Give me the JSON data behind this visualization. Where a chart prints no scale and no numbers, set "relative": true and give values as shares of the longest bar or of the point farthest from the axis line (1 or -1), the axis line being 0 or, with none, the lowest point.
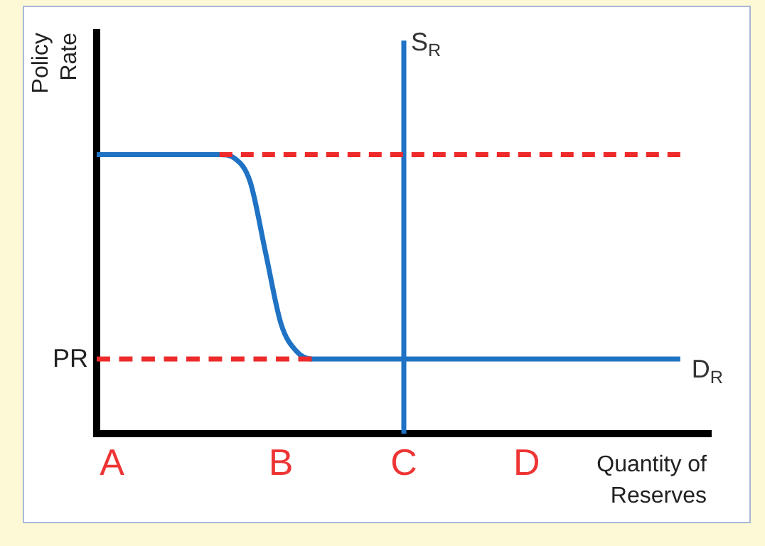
{
  "chart_data": {
    "type": "line",
    "relative": true,
    "xlabel": "Quantity of Reserves",
    "ylabel": "Policy Rate",
    "categories": [
      null,
      "A",
      null,
      null,
      null,
      null,
      null,
      null,
      null,
      null,
      null,
      null,
      "B",
      null,
      null,
      null,
      null,
      null,
      null,
      null,
      "C",
      null,
      null,
      null,
      null,
      null,
      null,
      null,
      "D",
      null,
      null,
      null,
      null,
      null,
      null,
      null,
      null,
      null,
      null,
      null,
      null
    ],
    "tick_labels": "x",
    "legend": false,
    "grid": false,
    "marker": "none",
    "annotations": [
      "PR"
    ],
    "series": [
      {
        "name": "D$_{R}$",
        "color": "#1f72c4",
        "line_style": "solid",
        "values": [
          0.71,
          0.71,
          0.71,
          0.71,
          0.71,
          0.71,
          0.71,
          0.71,
          0.71,
          0.7,
          0.64,
          0.46,
          0.28,
          0.21,
          0.19,
          0.19,
          0.19,
          0.19,
          0.19,
          0.19,
          0.19,
          0.19,
          0.19,
          0.19,
          0.19,
          0.19,
          0.19,
          0.19,
          0.19,
          0.19,
          0.19,
          0.19,
          0.19,
          0.19,
          0.19,
          0.19,
          0.19,
          0.19,
          0.19,
          null,
          null
        ]
      },
      {
        "name": "S$_{R}$",
        "color": "#1f72c4",
        "line_style": "solid",
        "x": [
          "C",
          "C"
        ],
        "values": [
          0,
          1
        ]
      },
      {
        "color": "#ee2a2a",
        "line_style": "dashed",
        "values": [
          null,
          null,
          null,
          null,
          null,
          null,
          null,
          null,
          0.71,
          0.71,
          0.71,
          0.71,
          0.71,
          0.71,
          0.71,
          0.71,
          0.71,
          0.71,
          0.71,
          0.71,
          0.71,
          0.71,
          0.71,
          0.71,
          0.71,
          0.71,
          0.71,
          0.71,
          0.71,
          0.71,
          0.71,
          0.71,
          0.71,
          0.71,
          0.71,
          0.71,
          0.71,
          0.71,
          0.71,
          null,
          null
        ]
      },
      {
        "color": "#ee2a2a",
        "line_style": "dashed",
        "values": [
          0.19,
          0.19,
          0.19,
          0.19,
          0.19,
          0.19,
          0.19,
          0.19,
          0.19,
          0.19,
          0.19,
          0.19,
          0.19,
          0.19,
          0.19,
          null,
          null,
          null,
          null,
          null,
          null,
          null,
          null,
          null,
          null,
          null,
          null,
          null,
          null,
          null,
          null,
          null,
          null,
          null,
          null,
          null,
          null,
          null,
          null,
          null,
          null
        ]
      }
    ]
  }
}
